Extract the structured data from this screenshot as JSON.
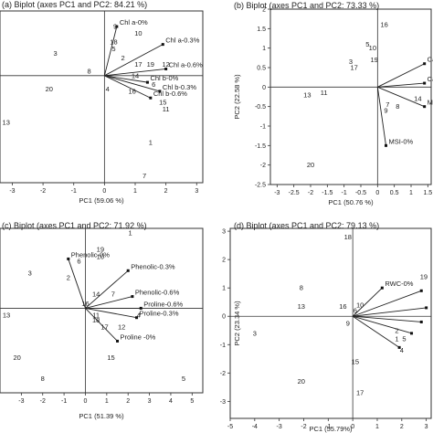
{
  "chart_data": [
    {
      "type": "scatter",
      "title": "(a) Biplot (axes PC1 and PC2: 84.21 %)",
      "xlabel": "PC1 (59.06 %)",
      "ylabel": "",
      "xlim": [
        -3.4,
        3.2
      ],
      "ylim": [
        -4.8,
        2.9
      ],
      "xticks": [
        -3,
        -2,
        -1,
        0,
        1,
        2,
        3
      ],
      "yticks": [],
      "observations": [
        {
          "label": "3",
          "x": -1.6,
          "y": 1.0
        },
        {
          "label": "8",
          "x": -0.5,
          "y": 0.2
        },
        {
          "label": "20",
          "x": -1.8,
          "y": -0.6
        },
        {
          "label": "13",
          "x": -3.2,
          "y": -2.1
        },
        {
          "label": "9",
          "x": 0.35,
          "y": 2.2
        },
        {
          "label": "18",
          "x": 0.3,
          "y": 1.5
        },
        {
          "label": "2",
          "x": 0.6,
          "y": 0.8
        },
        {
          "label": "5",
          "x": 0.3,
          "y": 1.2
        },
        {
          "label": "10",
          "x": 1.1,
          "y": 1.9
        },
        {
          "label": "19",
          "x": 1.5,
          "y": 0.5
        },
        {
          "label": "17",
          "x": 1.1,
          "y": 0.5
        },
        {
          "label": "12",
          "x": 2.0,
          "y": 0.5
        },
        {
          "label": "14",
          "x": 1.0,
          "y": 0.0
        },
        {
          "label": "6",
          "x": 1.6,
          "y": -0.4
        },
        {
          "label": "16",
          "x": 0.9,
          "y": -0.7
        },
        {
          "label": "4",
          "x": 0.1,
          "y": -0.6
        },
        {
          "label": "15",
          "x": 1.9,
          "y": -1.2
        },
        {
          "label": "11",
          "x": 2.0,
          "y": -1.5
        },
        {
          "label": "1",
          "x": 1.5,
          "y": -3.0
        },
        {
          "label": "7",
          "x": 1.3,
          "y": -4.5
        }
      ],
      "variables": [
        {
          "label": "Chl a-0%",
          "x": 0.4,
          "y": 2.2
        },
        {
          "label": "Chl a-0.3%",
          "x": 1.9,
          "y": 1.4
        },
        {
          "label": "Chl a-0.6%",
          "x": 2.0,
          "y": 0.3
        },
        {
          "label": "Chl b-0%",
          "x": 1.4,
          "y": -0.3
        },
        {
          "label": "Chl b-0.3%",
          "x": 1.8,
          "y": -0.7
        },
        {
          "label": "Chl b-0.6%",
          "x": 1.5,
          "y": -1.0
        }
      ]
    },
    {
      "type": "scatter",
      "title": "(b) Biplot (axes PC1 and PC2: 73.33 %)",
      "xlabel": "PC1 (50.76 %)",
      "ylabel": "PC2 (22.58 %)",
      "xlim": [
        -3.2,
        1.6
      ],
      "ylim": [
        -2.5,
        2.0
      ],
      "xticks": [
        -3,
        -2.5,
        -2,
        -1.5,
        -1,
        -0.5,
        0,
        0.5,
        1,
        1.5
      ],
      "yticks": [
        -2.5,
        -2,
        -1.5,
        -1,
        -0.5,
        0,
        0.5,
        1,
        1.5,
        2
      ],
      "observations": [
        {
          "label": "16",
          "x": 0.2,
          "y": 1.6
        },
        {
          "label": "10",
          "x": -0.15,
          "y": 1.0
        },
        {
          "label": "5",
          "x": -0.3,
          "y": 1.1
        },
        {
          "label": "19",
          "x": -0.1,
          "y": 0.7
        },
        {
          "label": "3",
          "x": -0.8,
          "y": 0.65
        },
        {
          "label": "17",
          "x": -0.7,
          "y": 0.5
        },
        {
          "label": "13",
          "x": -2.1,
          "y": -0.2
        },
        {
          "label": "11",
          "x": -1.6,
          "y": -0.15
        },
        {
          "label": "7",
          "x": 0.3,
          "y": -0.45
        },
        {
          "label": "9",
          "x": 0.25,
          "y": -0.6
        },
        {
          "label": "8",
          "x": 0.6,
          "y": -0.5
        },
        {
          "label": "14",
          "x": 1.2,
          "y": -0.3
        },
        {
          "label": "20",
          "x": -2.0,
          "y": -2.0
        }
      ],
      "variables": [
        {
          "label": "Ca",
          "x": 1.4,
          "y": 0.6
        },
        {
          "label": "Ca",
          "x": 1.4,
          "y": 0.1
        },
        {
          "label": "M",
          "x": 1.4,
          "y": -0.5
        },
        {
          "label": "MSI-0%",
          "x": 0.25,
          "y": -1.5
        }
      ]
    },
    {
      "type": "scatter",
      "title": "(c) Biplot (axes PC1 and PC2: 71.92 %)",
      "xlabel": "PC1 (51.39 %)",
      "ylabel": "",
      "xlim": [
        -4.0,
        5.5
      ],
      "ylim": [
        -3.6,
        3.4
      ],
      "xticks": [
        -3,
        -2,
        -1,
        0,
        1,
        2,
        3,
        4,
        5
      ],
      "yticks": [],
      "observations": [
        {
          "label": "1",
          "x": 2.1,
          "y": 3.2
        },
        {
          "label": "19",
          "x": 0.7,
          "y": 2.5
        },
        {
          "label": "10",
          "x": 0.7,
          "y": 2.2
        },
        {
          "label": "6",
          "x": -0.3,
          "y": 2.0
        },
        {
          "label": "3",
          "x": -2.6,
          "y": 1.5
        },
        {
          "label": "2",
          "x": -0.8,
          "y": 1.3
        },
        {
          "label": "14",
          "x": 0.5,
          "y": 0.6
        },
        {
          "label": "7",
          "x": 1.3,
          "y": 0.6
        },
        {
          "label": "16",
          "x": 0.0,
          "y": 0.2
        },
        {
          "label": "11",
          "x": 0.5,
          "y": -0.3
        },
        {
          "label": "4",
          "x": 2.5,
          "y": -0.3
        },
        {
          "label": "18",
          "x": 0.5,
          "y": -0.5
        },
        {
          "label": "17",
          "x": 0.9,
          "y": -0.8
        },
        {
          "label": "12",
          "x": 1.7,
          "y": -0.8
        },
        {
          "label": "13",
          "x": -3.7,
          "y": -0.3
        },
        {
          "label": "20",
          "x": -3.2,
          "y": -2.1
        },
        {
          "label": "15",
          "x": 1.2,
          "y": -2.1
        },
        {
          "label": "8",
          "x": -2.0,
          "y": -3.0
        },
        {
          "label": "5",
          "x": 4.6,
          "y": -3.0
        }
      ],
      "variables": [
        {
          "label": "Phenolic-0%",
          "x": -0.8,
          "y": 2.1
        },
        {
          "label": "Phenolic-0.3%",
          "x": 2.0,
          "y": 1.6
        },
        {
          "label": "Phenolic-0.6%",
          "x": 2.2,
          "y": 0.5
        },
        {
          "label": "Proline-0.6%",
          "x": 2.6,
          "y": 0.0
        },
        {
          "label": "Proline-0.3%",
          "x": 2.4,
          "y": -0.4
        },
        {
          "label": "Proline -0%",
          "x": 1.5,
          "y": -1.4
        }
      ]
    },
    {
      "type": "scatter",
      "title": "(d) Biplot (axes PC1 and PC2: 79.13 %)",
      "xlabel": "PC1 (55.79%)",
      "ylabel": "PC2 (23.34 %)",
      "xlim": [
        -5.0,
        3.2
      ],
      "ylim": [
        -3.6,
        3.1
      ],
      "xticks": [
        -5,
        -4,
        -3,
        -2,
        -1,
        0,
        1,
        2,
        3
      ],
      "yticks": [
        -3,
        -2,
        -1,
        0,
        1,
        2,
        3
      ],
      "observations": [
        {
          "label": "18",
          "x": -0.2,
          "y": 2.8
        },
        {
          "label": "19",
          "x": 2.9,
          "y": 1.4
        },
        {
          "label": "8",
          "x": -2.1,
          "y": 1.0
        },
        {
          "label": "13",
          "x": -2.1,
          "y": 0.35
        },
        {
          "label": "16",
          "x": -0.4,
          "y": 0.35
        },
        {
          "label": "10",
          "x": 0.3,
          "y": 0.4
        },
        {
          "label": "6",
          "x": 0.1,
          "y": 0.2
        },
        {
          "label": "9",
          "x": -0.2,
          "y": -0.25
        },
        {
          "label": "3",
          "x": -4.0,
          "y": -0.6
        },
        {
          "label": "2",
          "x": 1.8,
          "y": -0.5
        },
        {
          "label": "1",
          "x": 1.8,
          "y": -0.8
        },
        {
          "label": "5",
          "x": 2.1,
          "y": -0.8
        },
        {
          "label": "4",
          "x": 2.0,
          "y": -1.2
        },
        {
          "label": "15",
          "x": 0.1,
          "y": -1.6
        },
        {
          "label": "20",
          "x": -2.1,
          "y": -2.3
        },
        {
          "label": "17",
          "x": 0.3,
          "y": -2.7
        }
      ],
      "variables": [
        {
          "label": "RWC-0%",
          "x": 1.2,
          "y": 1.0
        },
        {
          "label": "",
          "x": 2.8,
          "y": 0.9
        },
        {
          "label": "",
          "x": 3.0,
          "y": 0.3
        },
        {
          "label": "",
          "x": 2.8,
          "y": -0.2
        },
        {
          "label": "",
          "x": 2.4,
          "y": -0.6
        },
        {
          "label": "",
          "x": 1.9,
          "y": -1.1
        }
      ]
    }
  ]
}
